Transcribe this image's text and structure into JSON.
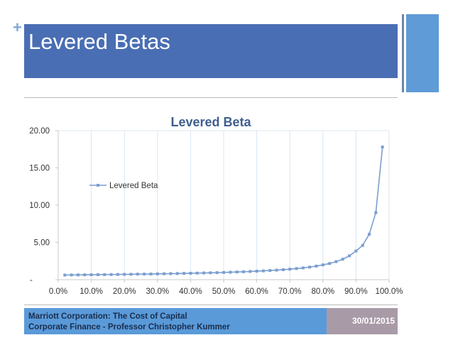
{
  "slide": {
    "title": "Levered Betas",
    "plus": "+"
  },
  "footer": {
    "line1": "Marriott Corporation: The Cost of Capital",
    "line2": "Corporate Finance - Professor Christopher Kummer",
    "date": "30/01/2015"
  },
  "colors": {
    "title_bar": "#4a6eb4",
    "series": "#7b9ed0",
    "chart_title": "#3f5f8f",
    "footer_left": "#5a9ad9",
    "footer_right": "#a99aa8"
  },
  "chart_data": {
    "type": "line",
    "title": "Levered Beta",
    "xlabel": "",
    "ylabel": "",
    "xlim": [
      0,
      100
    ],
    "ylim": [
      0,
      20
    ],
    "x_ticks": [
      "0.0%",
      "10.0%",
      "20.0%",
      "30.0%",
      "40.0%",
      "50.0%",
      "60.0%",
      "70.0%",
      "80.0%",
      "90.0%",
      "100.0%"
    ],
    "y_ticks": [
      "-",
      "5.00",
      "10.00",
      "15.00",
      "20.00"
    ],
    "grid": "vertical",
    "legend": "upper-left",
    "series": [
      {
        "name": "Levered Beta",
        "x": [
          2,
          4,
          6,
          8,
          10,
          12,
          14,
          16,
          18,
          20,
          22,
          24,
          26,
          28,
          30,
          32,
          34,
          36,
          38,
          40,
          42,
          44,
          46,
          48,
          50,
          52,
          54,
          56,
          58,
          60,
          62,
          64,
          66,
          68,
          70,
          72,
          74,
          76,
          78,
          80,
          82,
          84,
          86,
          88,
          90,
          92,
          94,
          96,
          98
        ],
        "values": [
          0.62,
          0.63,
          0.64,
          0.65,
          0.66,
          0.67,
          0.68,
          0.69,
          0.7,
          0.71,
          0.72,
          0.74,
          0.75,
          0.76,
          0.78,
          0.79,
          0.81,
          0.82,
          0.84,
          0.86,
          0.88,
          0.9,
          0.92,
          0.94,
          0.97,
          1.0,
          1.03,
          1.06,
          1.1,
          1.14,
          1.18,
          1.23,
          1.28,
          1.34,
          1.41,
          1.49,
          1.58,
          1.69,
          1.82,
          1.98,
          2.17,
          2.42,
          2.75,
          3.2,
          3.85,
          4.6,
          6.1,
          9.0,
          17.8
        ]
      }
    ]
  }
}
